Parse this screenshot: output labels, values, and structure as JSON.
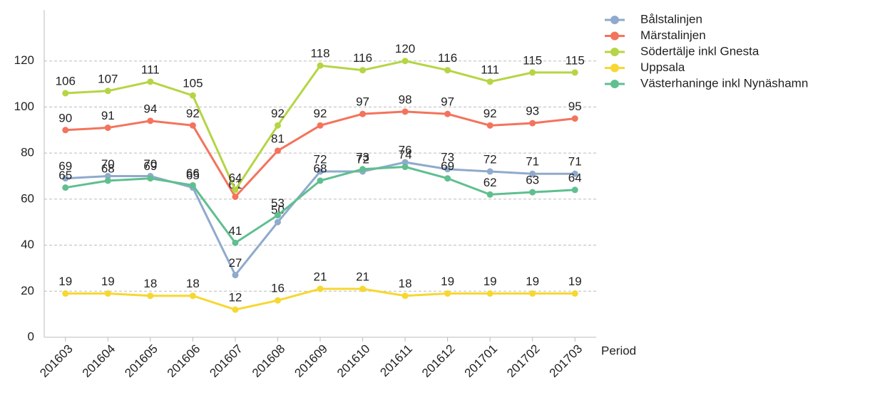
{
  "chart_data": {
    "type": "line",
    "x_label": "Period",
    "categories": [
      "201603",
      "201604",
      "201605",
      "201606",
      "201607",
      "201608",
      "201609",
      "201610",
      "201611",
      "201612",
      "201701",
      "201702",
      "201703"
    ],
    "series": [
      {
        "name": "Bålstalinjen",
        "color": "#8faacc",
        "values": [
          69,
          70,
          70,
          65,
          27,
          50,
          72,
          72,
          76,
          73,
          72,
          71,
          71
        ]
      },
      {
        "name": "Märstalinjen",
        "color": "#f4735c",
        "values": [
          90,
          91,
          94,
          92,
          61,
          81,
          92,
          97,
          98,
          97,
          92,
          93,
          95
        ]
      },
      {
        "name": "Södertälje inkl Gnesta",
        "color": "#b5d543",
        "values": [
          106,
          107,
          111,
          105,
          64,
          92,
          118,
          116,
          120,
          116,
          111,
          115,
          115
        ]
      },
      {
        "name": "Uppsala",
        "color": "#f7d731",
        "values": [
          19,
          19,
          18,
          18,
          12,
          16,
          21,
          21,
          18,
          19,
          19,
          19,
          19
        ]
      },
      {
        "name": "Västerhaninge inkl Nynäshamn",
        "color": "#5fbf8f",
        "values": [
          65,
          68,
          69,
          66,
          41,
          53,
          68,
          73,
          74,
          69,
          62,
          63,
          64
        ]
      }
    ],
    "ylim": [
      0,
      140
    ],
    "yticks": [
      0,
      20,
      40,
      60,
      80,
      100,
      120
    ],
    "grid": true,
    "legend": "top-right"
  }
}
